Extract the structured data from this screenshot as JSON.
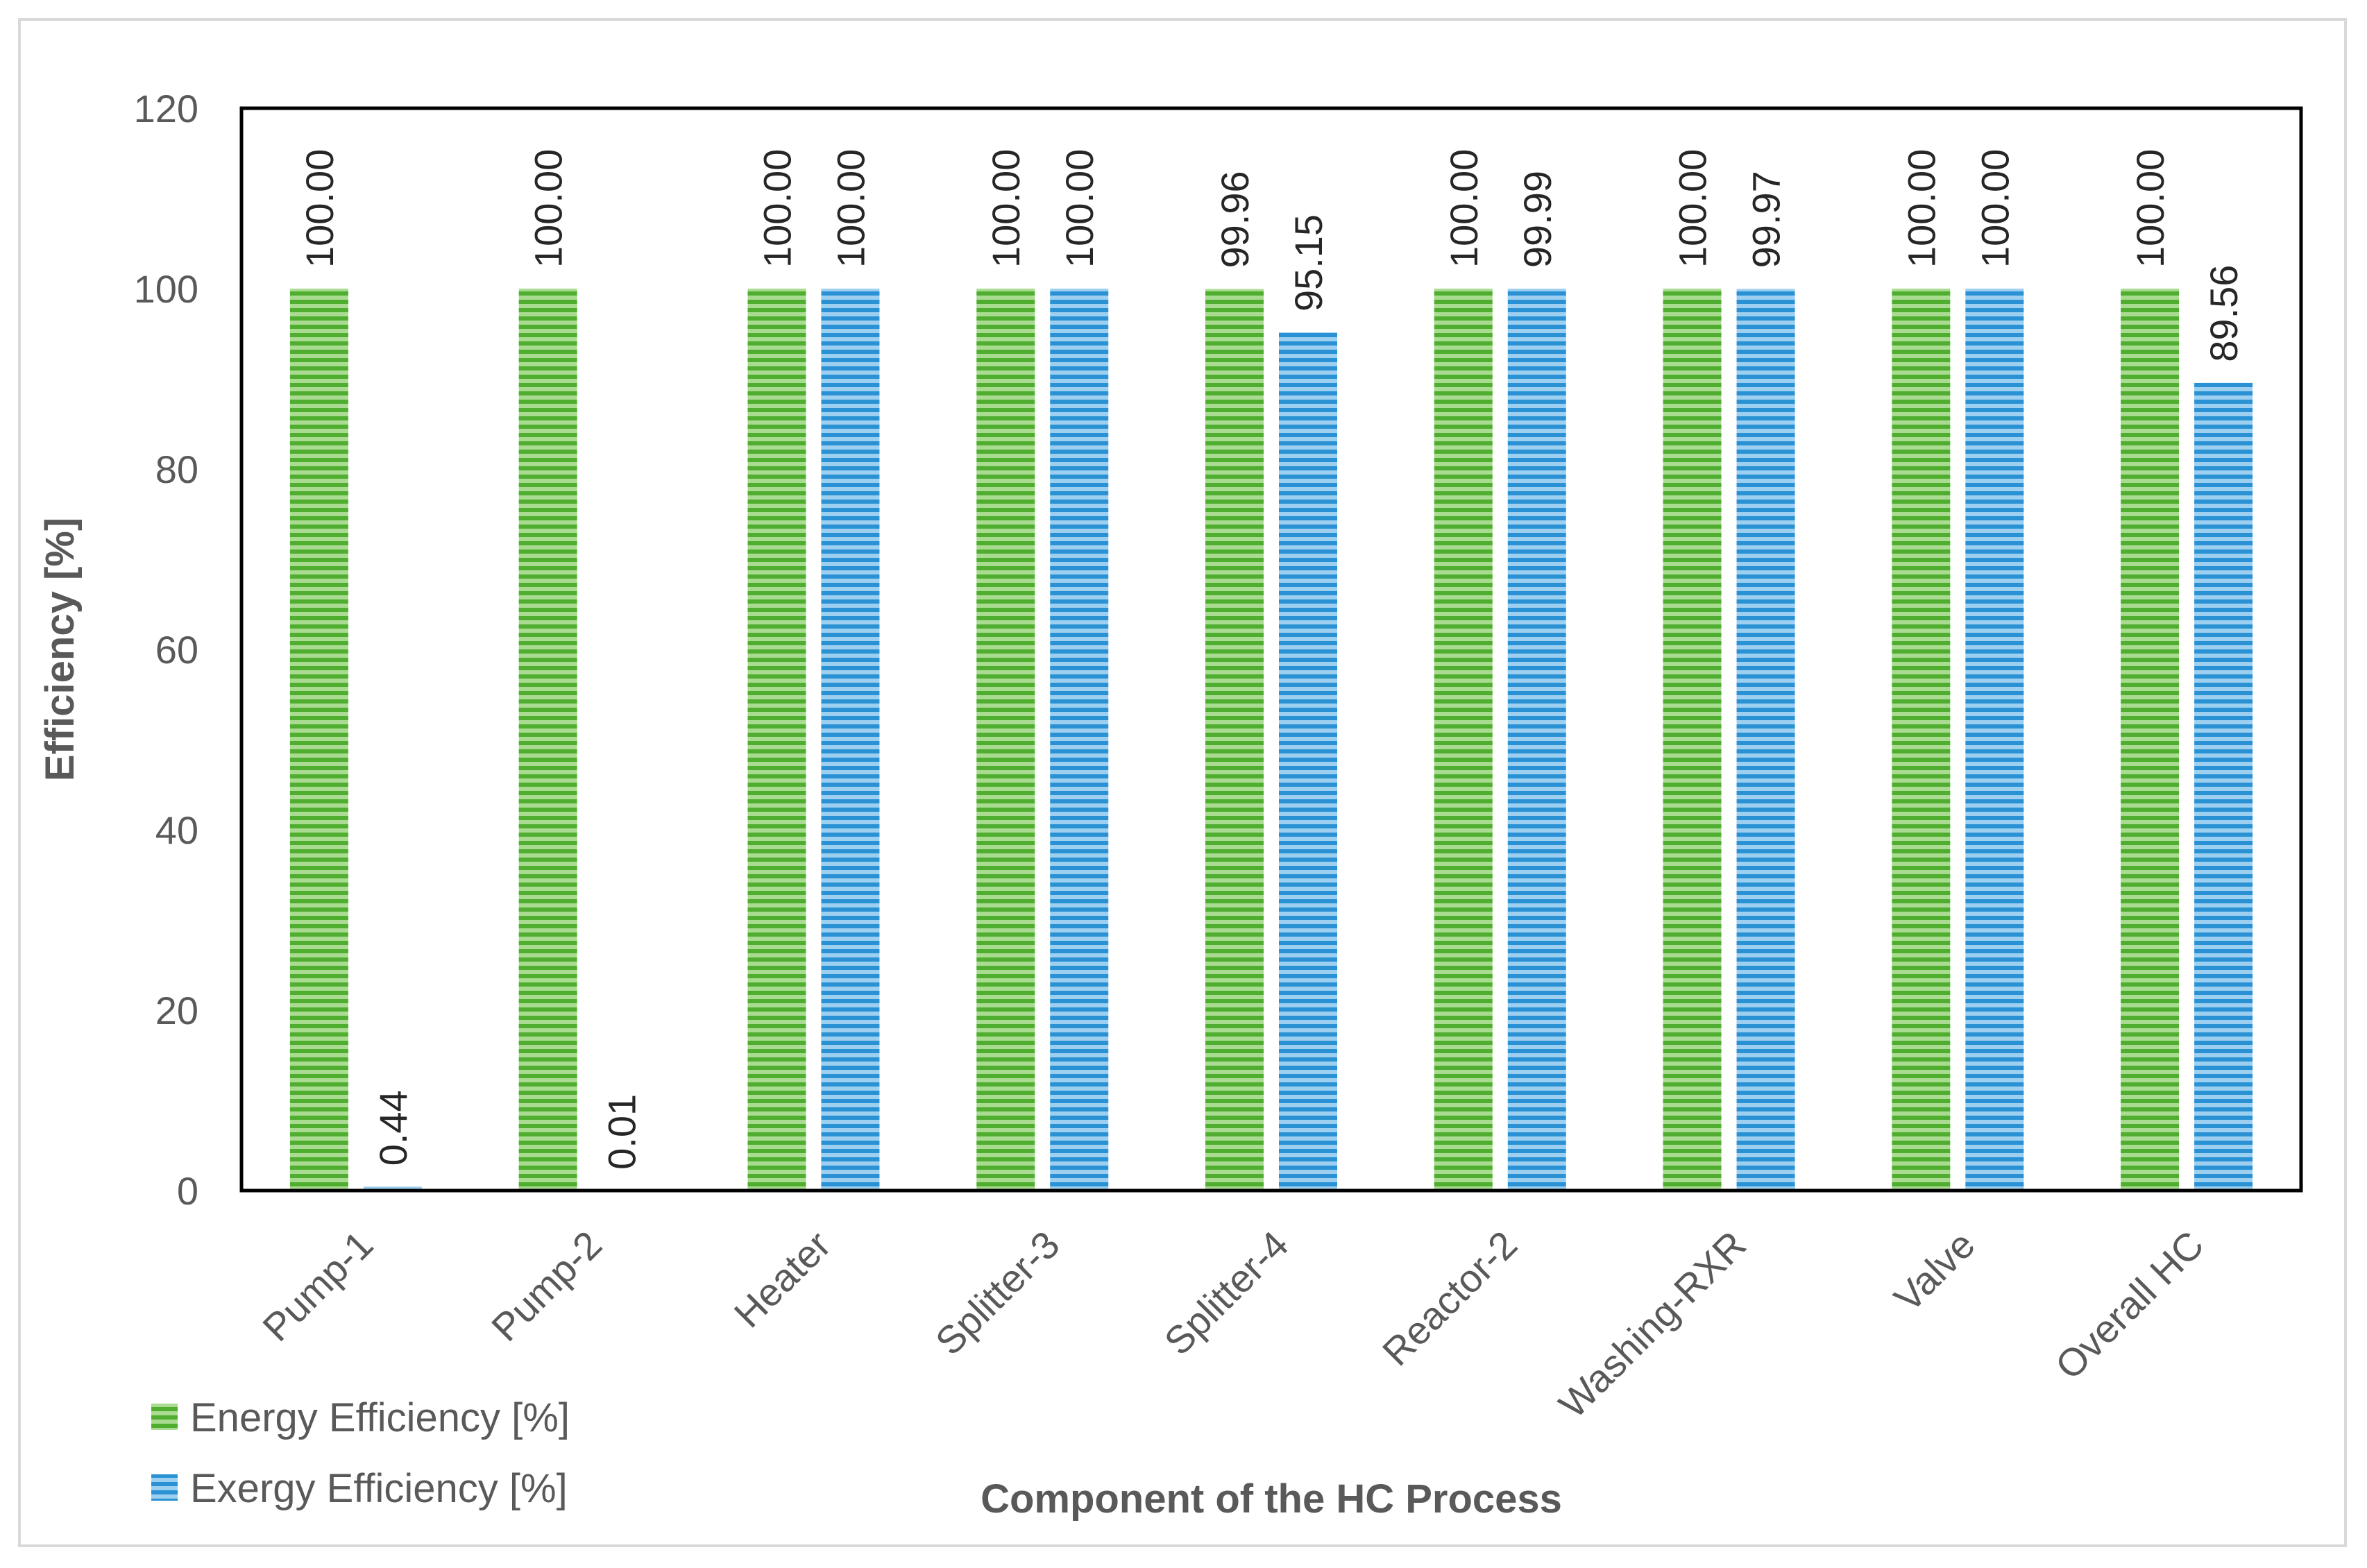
{
  "chart_data": {
    "type": "bar",
    "title": "",
    "xlabel": "Component of the HC Process",
    "ylabel": "Efficiency [%]",
    "ylim": [
      0,
      120
    ],
    "yticks": [
      0,
      20,
      40,
      60,
      80,
      100,
      120
    ],
    "grid": false,
    "legend_position": "bottom-left",
    "categories": [
      "Pump-1",
      "Pump-2",
      "Heater",
      "Splitter-3",
      "Splitter-4",
      "Reactor-2",
      "Washing-RXR",
      "Valve",
      "Overall HC"
    ],
    "series": [
      {
        "name": "Energy Efficiency [%]",
        "color": "#5cb83a",
        "values": [
          100.0,
          100.0,
          100.0,
          100.0,
          99.96,
          100.0,
          100.0,
          100.0,
          100.0
        ],
        "labels": [
          "100.00",
          "100.00",
          "100.00",
          "100.00",
          "99.96",
          "100.00",
          "100.00",
          "100.00",
          "100.00"
        ]
      },
      {
        "name": "Exergy Efficiency [%]",
        "color": "#2f9ad8",
        "values": [
          0.44,
          0.01,
          100.0,
          100.0,
          95.15,
          99.99,
          99.97,
          100.0,
          89.56
        ],
        "labels": [
          "0.44",
          "0.01",
          "100.00",
          "100.00",
          "95.15",
          "99.99",
          "99.97",
          "100.00",
          "89.56"
        ]
      }
    ]
  }
}
